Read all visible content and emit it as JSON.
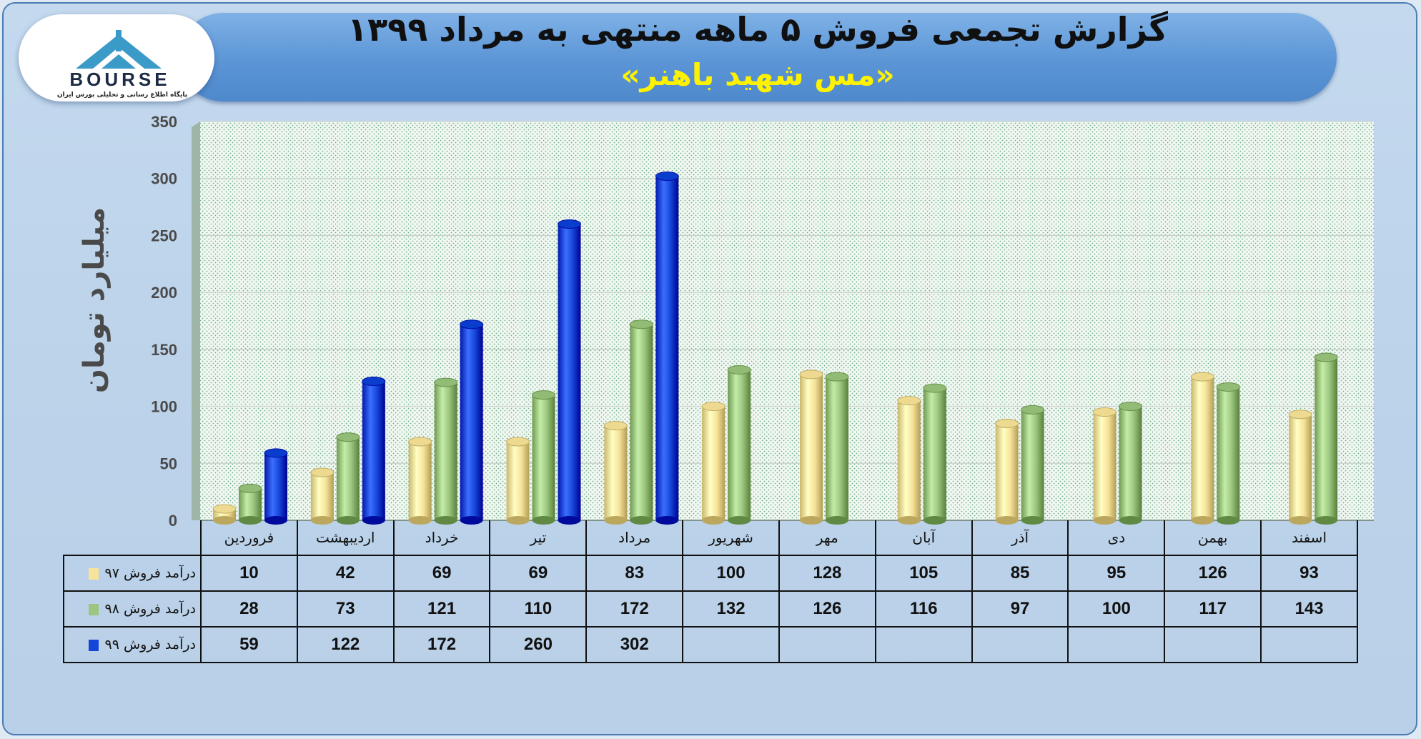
{
  "header": {
    "title": "گزارش تجمعی فروش ۵ ماهه منتهی به مرداد ۱۳۹۹",
    "subtitle": "«مس شهید باهنر»"
  },
  "logo": {
    "word": "BOURSE",
    "caption": "پایگاه اطلاع رسانی و تحلیلی بورس ایران"
  },
  "chart_data": {
    "type": "bar",
    "title": "گزارش تجمعی فروش ۵ ماهه منتهی به مرداد ۱۳۹۹",
    "subtitle": "«مس شهید باهنر»",
    "ylabel": "میلیارد تومان",
    "ylim": [
      0,
      350
    ],
    "yticks": [
      0,
      50,
      100,
      150,
      200,
      250,
      300,
      350
    ],
    "grid": true,
    "categories": [
      "فروردین",
      "اردیبهشت",
      "خرداد",
      "تیر",
      "مرداد",
      "شهریور",
      "مهر",
      "آبان",
      "آذر",
      "دی",
      "بهمن",
      "اسفند"
    ],
    "series": [
      {
        "name": "درآمد فروش ۹۷",
        "color": "#f7e39a",
        "values": [
          10,
          42,
          69,
          69,
          83,
          100,
          128,
          105,
          85,
          95,
          126,
          93
        ]
      },
      {
        "name": "درآمد فروش ۹۸",
        "color": "#9cc67f",
        "values": [
          28,
          73,
          121,
          110,
          172,
          132,
          126,
          116,
          97,
          100,
          117,
          143
        ]
      },
      {
        "name": "درآمد فروش ۹۹",
        "color": "#1446d8",
        "values": [
          59,
          122,
          172,
          260,
          302,
          null,
          null,
          null,
          null,
          null,
          null,
          null
        ]
      }
    ]
  }
}
